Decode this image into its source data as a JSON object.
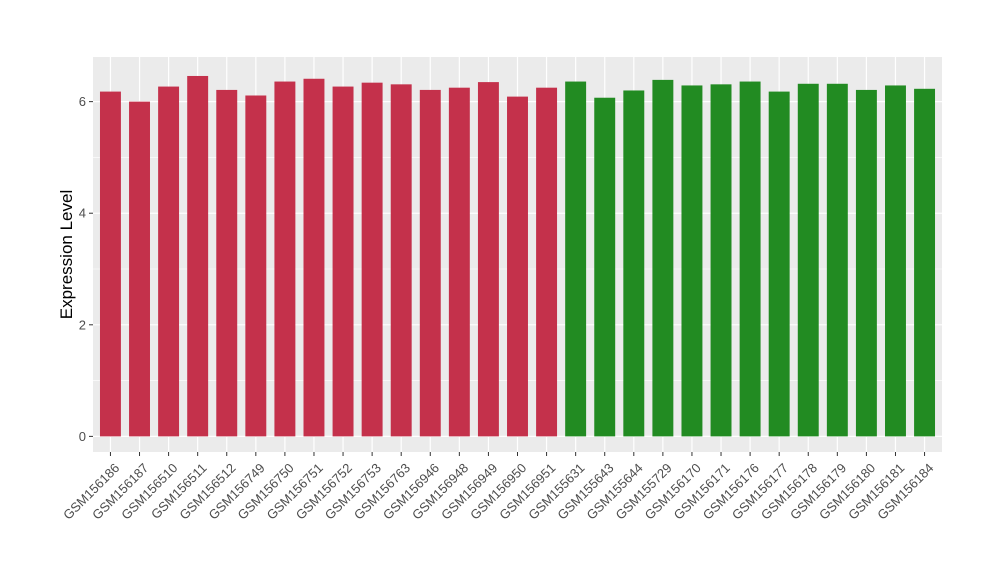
{
  "chart_data": {
    "type": "bar",
    "title": "",
    "xlabel": "",
    "ylabel": "Expression Level",
    "ylim": [
      -0.28,
      6.8
    ],
    "yticks": [
      0,
      2,
      4,
      6
    ],
    "ytick_labels": [
      "0",
      "2",
      "4",
      "6"
    ],
    "grid": true,
    "legend": "none",
    "panel_background": "#ebebeb",
    "grid_color": "#ffffff",
    "categories": [
      "GSM156186",
      "GSM156187",
      "GSM156510",
      "GSM156511",
      "GSM156512",
      "GSM156749",
      "GSM156750",
      "GSM156751",
      "GSM156752",
      "GSM156753",
      "GSM156763",
      "GSM156946",
      "GSM156948",
      "GSM156949",
      "GSM156950",
      "GSM156951",
      "GSM155631",
      "GSM155643",
      "GSM155644",
      "GSM155729",
      "GSM156170",
      "GSM156171",
      "GSM156176",
      "GSM156177",
      "GSM156178",
      "GSM156179",
      "GSM156180",
      "GSM156181",
      "GSM156184"
    ],
    "values": [
      6.18,
      6.0,
      6.27,
      6.46,
      6.21,
      6.11,
      6.36,
      6.41,
      6.27,
      6.34,
      6.31,
      6.21,
      6.25,
      6.35,
      6.09,
      6.25,
      6.36,
      6.07,
      6.2,
      6.39,
      6.29,
      6.31,
      6.36,
      6.18,
      6.32,
      6.32,
      6.21,
      6.29,
      6.23
    ],
    "colors": [
      "#c4314b",
      "#c4314b",
      "#c4314b",
      "#c4314b",
      "#c4314b",
      "#c4314b",
      "#c4314b",
      "#c4314b",
      "#c4314b",
      "#c4314b",
      "#c4314b",
      "#c4314b",
      "#c4314b",
      "#c4314b",
      "#c4314b",
      "#c4314b",
      "#228b22",
      "#228b22",
      "#228b22",
      "#228b22",
      "#228b22",
      "#228b22",
      "#228b22",
      "#228b22",
      "#228b22",
      "#228b22",
      "#228b22",
      "#228b22",
      "#228b22"
    ]
  }
}
